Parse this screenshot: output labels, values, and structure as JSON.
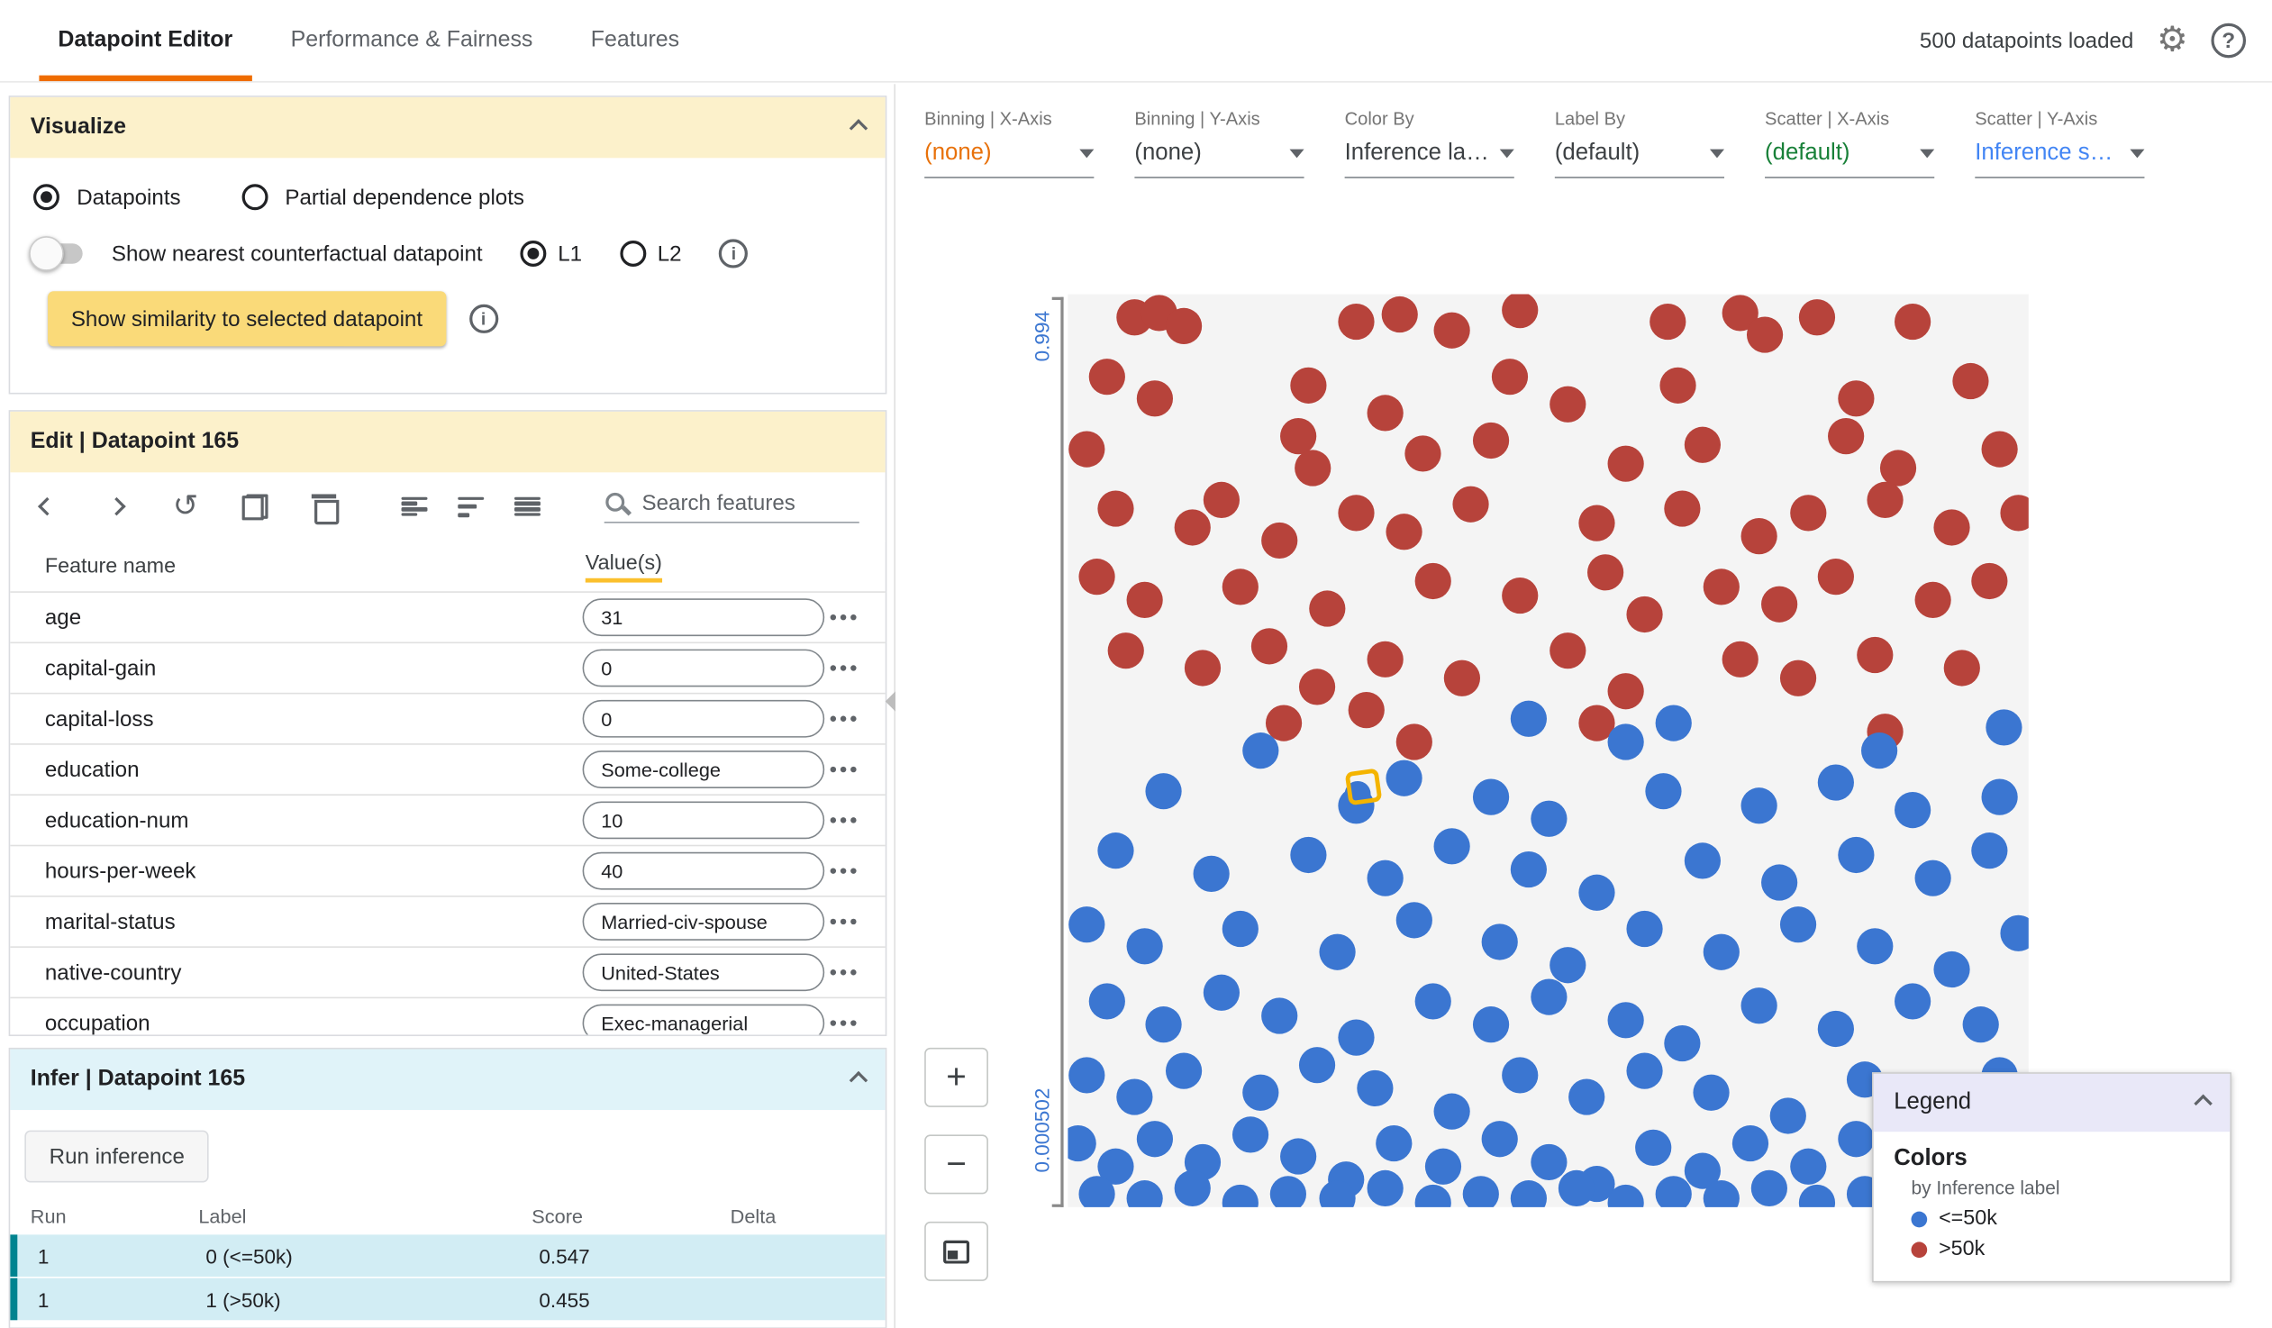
{
  "header": {
    "tabs": [
      {
        "label": "Datapoint Editor",
        "active": true
      },
      {
        "label": "Performance & Fairness",
        "active": false
      },
      {
        "label": "Features",
        "active": false
      }
    ],
    "status": "500 datapoints loaded"
  },
  "visualize": {
    "title": "Visualize",
    "radio_datapoints": "Datapoints",
    "radio_pdp": "Partial dependence plots",
    "toggle_label": "Show nearest counterfactual datapoint",
    "l1": "L1",
    "l2": "L2",
    "similarity_button": "Show similarity to selected datapoint"
  },
  "edit": {
    "title": "Edit | Datapoint 165",
    "search_placeholder": "Search features",
    "columns": {
      "feature": "Feature name",
      "values": "Value(s)"
    },
    "features": [
      {
        "name": "age",
        "value": "31"
      },
      {
        "name": "capital-gain",
        "value": "0"
      },
      {
        "name": "capital-loss",
        "value": "0"
      },
      {
        "name": "education",
        "value": "Some-college"
      },
      {
        "name": "education-num",
        "value": "10"
      },
      {
        "name": "hours-per-week",
        "value": "40"
      },
      {
        "name": "marital-status",
        "value": "Married-civ-spouse"
      },
      {
        "name": "native-country",
        "value": "United-States"
      },
      {
        "name": "occupation",
        "value": "Exec-managerial"
      }
    ]
  },
  "infer": {
    "title": "Infer | Datapoint 165",
    "run_button": "Run inference",
    "columns": [
      "Run",
      "Label",
      "Score",
      "Delta"
    ],
    "rows": [
      {
        "run": "1",
        "label": "0 (<=50k)",
        "score": "0.547",
        "delta": ""
      },
      {
        "run": "1",
        "label": "1 (>50k)",
        "score": "0.455",
        "delta": ""
      }
    ]
  },
  "controls": [
    {
      "label": "Binning | X-Axis",
      "value": "(none)",
      "color": "#e8710a"
    },
    {
      "label": "Binning | Y-Axis",
      "value": "(none)",
      "color": "#3c4043"
    },
    {
      "label": "Color By",
      "value": "Inference label",
      "color": "#3c4043"
    },
    {
      "label": "Label By",
      "value": "(default)",
      "color": "#3c4043"
    },
    {
      "label": "Scatter | X-Axis",
      "value": "(default)",
      "color": "#188038"
    },
    {
      "label": "Scatter | Y-Axis",
      "value": "Inference score",
      "color": "#4285f4"
    }
  ],
  "plot": {
    "zoom_in": "+",
    "zoom_out": "−"
  },
  "legend": {
    "title": "Legend",
    "section": "Colors",
    "subtitle": "by Inference label",
    "items": [
      {
        "label": "<=50k",
        "color": "#3b76d1"
      },
      {
        "label": ">50k",
        "color": "#b7433b"
      }
    ]
  },
  "chart_data": {
    "type": "scatter",
    "ylabel": "Inference score",
    "y_axis_ticks": [
      "0.994",
      "0.000502"
    ],
    "coords": "fraction of plot area, origin top-left",
    "selected_point": {
      "x": 0.308,
      "y": 0.54
    },
    "series": [
      {
        "name": ">50k",
        "color": "#b7433b",
        "points": [
          [
            0.07,
            0.025
          ],
          [
            0.095,
            0.02
          ],
          [
            0.12,
            0.035
          ],
          [
            0.3,
            0.03
          ],
          [
            0.345,
            0.022
          ],
          [
            0.4,
            0.04
          ],
          [
            0.47,
            0.018
          ],
          [
            0.625,
            0.03
          ],
          [
            0.7,
            0.02
          ],
          [
            0.725,
            0.045
          ],
          [
            0.78,
            0.025
          ],
          [
            0.88,
            0.03
          ],
          [
            0.04,
            0.09
          ],
          [
            0.09,
            0.115
          ],
          [
            0.25,
            0.1
          ],
          [
            0.33,
            0.13
          ],
          [
            0.46,
            0.09
          ],
          [
            0.52,
            0.12
          ],
          [
            0.635,
            0.1
          ],
          [
            0.82,
            0.115
          ],
          [
            0.94,
            0.095
          ],
          [
            0.02,
            0.17
          ],
          [
            0.24,
            0.155
          ],
          [
            0.255,
            0.19
          ],
          [
            0.37,
            0.175
          ],
          [
            0.44,
            0.16
          ],
          [
            0.58,
            0.185
          ],
          [
            0.66,
            0.165
          ],
          [
            0.81,
            0.155
          ],
          [
            0.865,
            0.19
          ],
          [
            0.97,
            0.17
          ],
          [
            0.05,
            0.235
          ],
          [
            0.13,
            0.255
          ],
          [
            0.16,
            0.225
          ],
          [
            0.22,
            0.27
          ],
          [
            0.3,
            0.24
          ],
          [
            0.35,
            0.26
          ],
          [
            0.42,
            0.23
          ],
          [
            0.55,
            0.25
          ],
          [
            0.64,
            0.235
          ],
          [
            0.72,
            0.265
          ],
          [
            0.77,
            0.24
          ],
          [
            0.85,
            0.225
          ],
          [
            0.92,
            0.255
          ],
          [
            0.99,
            0.24
          ],
          [
            0.03,
            0.31
          ],
          [
            0.08,
            0.335
          ],
          [
            0.18,
            0.32
          ],
          [
            0.27,
            0.345
          ],
          [
            0.38,
            0.315
          ],
          [
            0.47,
            0.33
          ],
          [
            0.56,
            0.305
          ],
          [
            0.6,
            0.35
          ],
          [
            0.68,
            0.32
          ],
          [
            0.74,
            0.34
          ],
          [
            0.8,
            0.31
          ],
          [
            0.9,
            0.335
          ],
          [
            0.96,
            0.315
          ],
          [
            0.06,
            0.39
          ],
          [
            0.14,
            0.41
          ],
          [
            0.21,
            0.385
          ],
          [
            0.26,
            0.43
          ],
          [
            0.33,
            0.4
          ],
          [
            0.41,
            0.42
          ],
          [
            0.52,
            0.39
          ],
          [
            0.58,
            0.435
          ],
          [
            0.7,
            0.4
          ],
          [
            0.76,
            0.42
          ],
          [
            0.84,
            0.395
          ],
          [
            0.93,
            0.41
          ],
          [
            0.225,
            0.47
          ],
          [
            0.31,
            0.455
          ],
          [
            0.36,
            0.49
          ],
          [
            0.55,
            0.47
          ],
          [
            0.85,
            0.48
          ]
        ]
      },
      {
        "name": "<=50k",
        "color": "#3b76d1",
        "points": [
          [
            0.2,
            0.5
          ],
          [
            0.48,
            0.465
          ],
          [
            0.58,
            0.49
          ],
          [
            0.63,
            0.47
          ],
          [
            0.845,
            0.5
          ],
          [
            0.975,
            0.475
          ],
          [
            0.1,
            0.545
          ],
          [
            0.3,
            0.56
          ],
          [
            0.35,
            0.53
          ],
          [
            0.44,
            0.55
          ],
          [
            0.5,
            0.575
          ],
          [
            0.62,
            0.545
          ],
          [
            0.72,
            0.56
          ],
          [
            0.8,
            0.535
          ],
          [
            0.88,
            0.565
          ],
          [
            0.97,
            0.55
          ],
          [
            0.05,
            0.61
          ],
          [
            0.15,
            0.635
          ],
          [
            0.25,
            0.615
          ],
          [
            0.33,
            0.64
          ],
          [
            0.4,
            0.605
          ],
          [
            0.48,
            0.63
          ],
          [
            0.55,
            0.655
          ],
          [
            0.66,
            0.62
          ],
          [
            0.74,
            0.645
          ],
          [
            0.82,
            0.615
          ],
          [
            0.9,
            0.64
          ],
          [
            0.96,
            0.61
          ],
          [
            0.02,
            0.69
          ],
          [
            0.08,
            0.715
          ],
          [
            0.18,
            0.695
          ],
          [
            0.28,
            0.72
          ],
          [
            0.36,
            0.685
          ],
          [
            0.45,
            0.71
          ],
          [
            0.52,
            0.735
          ],
          [
            0.6,
            0.695
          ],
          [
            0.68,
            0.72
          ],
          [
            0.76,
            0.69
          ],
          [
            0.84,
            0.715
          ],
          [
            0.92,
            0.74
          ],
          [
            0.99,
            0.7
          ],
          [
            0.04,
            0.775
          ],
          [
            0.1,
            0.8
          ],
          [
            0.16,
            0.765
          ],
          [
            0.22,
            0.79
          ],
          [
            0.3,
            0.815
          ],
          [
            0.38,
            0.775
          ],
          [
            0.44,
            0.8
          ],
          [
            0.5,
            0.77
          ],
          [
            0.58,
            0.795
          ],
          [
            0.64,
            0.82
          ],
          [
            0.72,
            0.78
          ],
          [
            0.8,
            0.805
          ],
          [
            0.88,
            0.775
          ],
          [
            0.95,
            0.8
          ],
          [
            0.02,
            0.855
          ],
          [
            0.07,
            0.88
          ],
          [
            0.12,
            0.85
          ],
          [
            0.2,
            0.875
          ],
          [
            0.26,
            0.845
          ],
          [
            0.32,
            0.87
          ],
          [
            0.4,
            0.895
          ],
          [
            0.47,
            0.855
          ],
          [
            0.54,
            0.88
          ],
          [
            0.6,
            0.85
          ],
          [
            0.67,
            0.875
          ],
          [
            0.75,
            0.9
          ],
          [
            0.83,
            0.86
          ],
          [
            0.9,
            0.885
          ],
          [
            0.97,
            0.855
          ],
          [
            0.01,
            0.93
          ],
          [
            0.05,
            0.955
          ],
          [
            0.09,
            0.925
          ],
          [
            0.14,
            0.95
          ],
          [
            0.19,
            0.92
          ],
          [
            0.24,
            0.945
          ],
          [
            0.29,
            0.97
          ],
          [
            0.34,
            0.93
          ],
          [
            0.39,
            0.955
          ],
          [
            0.45,
            0.925
          ],
          [
            0.5,
            0.95
          ],
          [
            0.55,
            0.975
          ],
          [
            0.61,
            0.935
          ],
          [
            0.66,
            0.96
          ],
          [
            0.71,
            0.93
          ],
          [
            0.77,
            0.955
          ],
          [
            0.82,
            0.925
          ],
          [
            0.87,
            0.95
          ],
          [
            0.93,
            0.975
          ],
          [
            0.98,
            0.94
          ],
          [
            0.03,
            0.985
          ],
          [
            0.08,
            0.99
          ],
          [
            0.13,
            0.98
          ],
          [
            0.18,
            0.995
          ],
          [
            0.23,
            0.985
          ],
          [
            0.28,
            0.99
          ],
          [
            0.33,
            0.98
          ],
          [
            0.38,
            0.995
          ],
          [
            0.43,
            0.985
          ],
          [
            0.48,
            0.99
          ],
          [
            0.53,
            0.98
          ],
          [
            0.58,
            0.995
          ],
          [
            0.63,
            0.985
          ],
          [
            0.68,
            0.99
          ],
          [
            0.73,
            0.98
          ],
          [
            0.78,
            0.995
          ],
          [
            0.83,
            0.985
          ],
          [
            0.88,
            0.99
          ],
          [
            0.93,
            0.98
          ],
          [
            0.98,
            0.99
          ]
        ]
      }
    ]
  }
}
